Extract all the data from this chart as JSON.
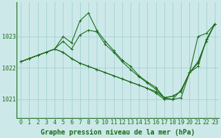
{
  "background_color": "#cce8e8",
  "grid_color": "#99cccc",
  "line_color": "#1a6b1a",
  "xlabel": "Graphe pression niveau de la mer (hPa)",
  "xlabel_fontsize": 7,
  "tick_fontsize": 6,
  "ytick_labels": [
    1021,
    1022,
    1023
  ],
  "ylim": [
    1020.4,
    1024.1
  ],
  "xlim": [
    -0.5,
    23.5
  ],
  "series": [
    [
      1022.2,
      1022.3,
      1022.4,
      1022.5,
      1022.6,
      1023.0,
      1022.8,
      1023.5,
      1023.75,
      1023.2,
      1022.85,
      1022.55,
      1022.25,
      1022.05,
      1021.75,
      1021.55,
      1021.38,
      1021.05,
      1021.1,
      1021.25,
      1021.85,
      1023.0,
      1023.1,
      1023.4
    ],
    [
      1022.2,
      1022.3,
      1022.4,
      1022.5,
      1022.6,
      1022.85,
      1022.6,
      1023.05,
      1023.2,
      1023.15,
      1022.75,
      1022.5,
      1022.2,
      1021.95,
      1021.72,
      1021.52,
      1021.32,
      1021.05,
      1021.1,
      1021.25,
      1021.85,
      1022.05,
      1022.9,
      1023.4
    ],
    [
      1022.2,
      1022.3,
      1022.4,
      1022.5,
      1022.6,
      1022.5,
      1022.3,
      1022.15,
      1022.05,
      1021.95,
      1021.85,
      1021.75,
      1021.65,
      1021.55,
      1021.45,
      1021.35,
      1021.25,
      1021.05,
      1021.0,
      1021.05,
      1021.85,
      1022.15,
      1022.9,
      1023.4
    ],
    [
      1022.2,
      1022.3,
      1022.4,
      1022.5,
      1022.6,
      1022.5,
      1022.3,
      1022.15,
      1022.05,
      1021.95,
      1021.85,
      1021.75,
      1021.65,
      1021.55,
      1021.45,
      1021.35,
      1021.2,
      1021.0,
      1021.0,
      1021.3,
      1021.85,
      1022.2,
      1022.85,
      1023.4
    ]
  ]
}
